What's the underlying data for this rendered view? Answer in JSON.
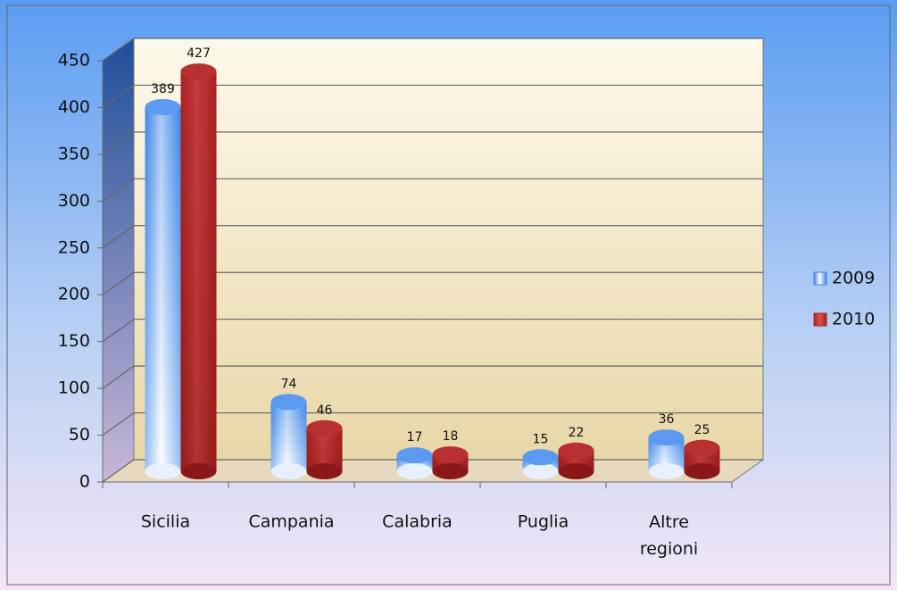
{
  "chart_data": {
    "type": "bar3d",
    "categories": [
      "Sicilia",
      "Campania",
      "Calabria",
      "Puglia",
      "Altre regioni"
    ],
    "series": [
      {
        "name": "2009",
        "color": "#3d86e8",
        "values": [
          389,
          74,
          17,
          15,
          36
        ]
      },
      {
        "name": "2010",
        "color": "#a82222",
        "values": [
          427,
          46,
          18,
          22,
          25
        ]
      }
    ],
    "ylim": [
      0,
      450
    ],
    "yticks": [
      0,
      50,
      100,
      150,
      200,
      250,
      300,
      350,
      400,
      450
    ],
    "grid": true,
    "legend": "right"
  }
}
